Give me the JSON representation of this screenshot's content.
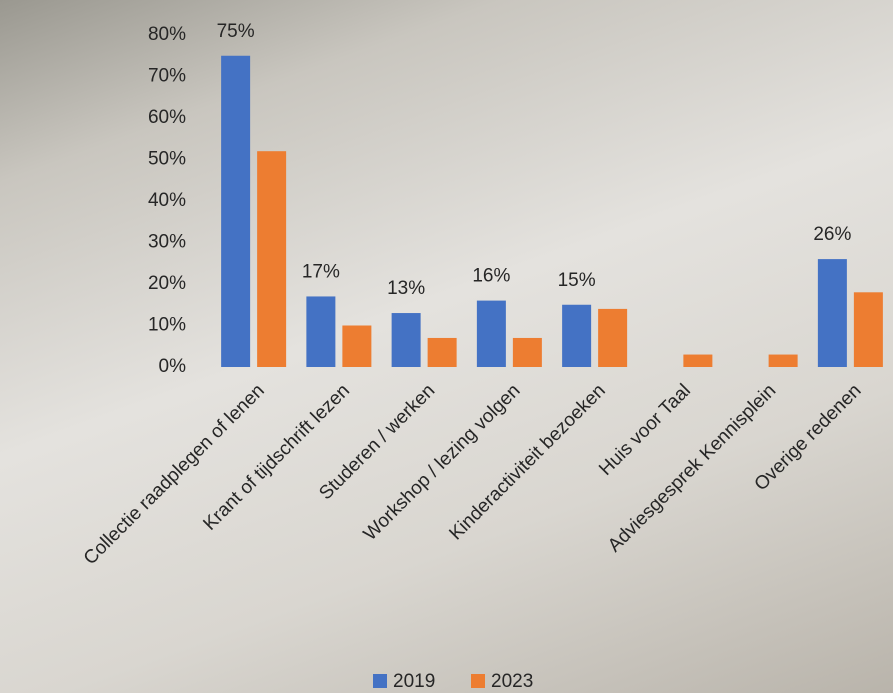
{
  "chart_data": {
    "type": "bar",
    "categories": [
      "Collectie raadplegen of lenen",
      "Krant of tijdschrift lezen",
      "Studeren / werken",
      "Workshop / lezing volgen",
      "Kinderactiviteit bezoeken",
      "Huis voor Taal",
      "Adviesgesprek Kennisplein",
      "Overige redenen"
    ],
    "series": [
      {
        "name": "2019",
        "color": "#4472c4",
        "values": [
          75,
          17,
          13,
          16,
          15,
          null,
          null,
          26
        ],
        "value_labels": [
          "75%",
          "17%",
          "13%",
          "16%",
          "15%",
          null,
          null,
          "26%"
        ]
      },
      {
        "name": "2023",
        "color": "#ed7d31",
        "values": [
          52,
          10,
          7,
          7,
          14,
          3,
          3,
          18
        ]
      }
    ],
    "ylim": [
      0,
      80
    ],
    "yticks": [
      {
        "value": 0,
        "label": "0%"
      },
      {
        "value": 10,
        "label": "10%"
      },
      {
        "value": 20,
        "label": "20%"
      },
      {
        "value": 30,
        "label": "30%"
      },
      {
        "value": 40,
        "label": "40%"
      },
      {
        "value": 50,
        "label": "50%"
      },
      {
        "value": 60,
        "label": "60%"
      },
      {
        "value": 70,
        "label": "70%"
      },
      {
        "value": 80,
        "label": "80%"
      }
    ],
    "legend": "bottom"
  }
}
